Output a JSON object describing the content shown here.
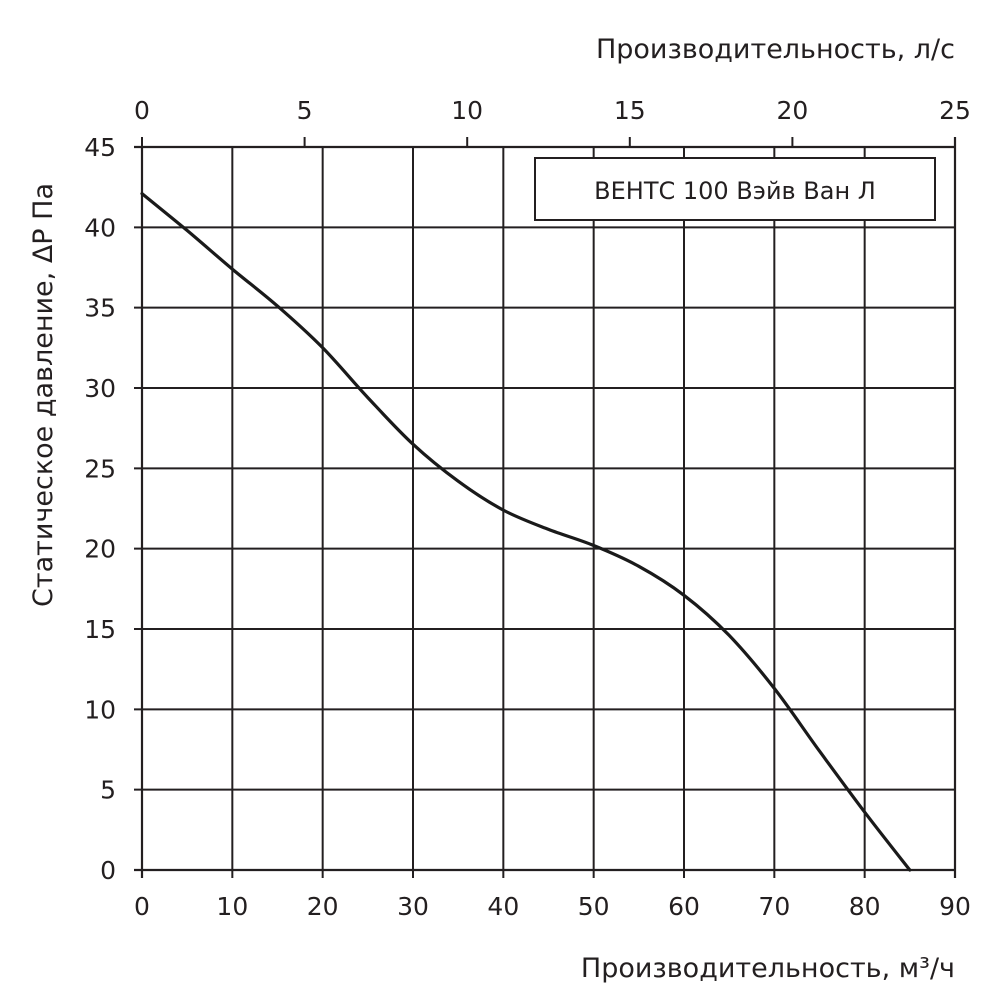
{
  "chart_data": {
    "type": "line",
    "title": "",
    "legend": [
      "ВЕНТС 100 Вэйв Ван Л"
    ],
    "legend_position": "top-right",
    "grid": true,
    "xlabel": "Производительность, м³/ч",
    "xlabel_top": "Производительность, л/с",
    "ylabel": "Статическое давление, ΔP Па",
    "xlim": [
      0,
      90
    ],
    "xlim_top": [
      0,
      25
    ],
    "ylim": [
      0,
      45
    ],
    "x_ticks": [
      0,
      10,
      20,
      30,
      40,
      50,
      60,
      70,
      80,
      90
    ],
    "x_ticks_top": [
      0,
      5,
      10,
      15,
      20,
      25
    ],
    "y_ticks": [
      0,
      5,
      10,
      15,
      20,
      25,
      30,
      35,
      40,
      45
    ],
    "series": [
      {
        "name": "ВЕНТС 100 Вэйв Ван Л",
        "x": [
          0,
          5,
          10,
          15,
          20,
          25,
          30,
          35,
          40,
          45,
          50,
          55,
          60,
          65,
          70,
          75,
          80,
          85
        ],
        "y": [
          42.1,
          39.8,
          37.4,
          35.1,
          32.5,
          29.4,
          26.5,
          24.2,
          22.4,
          21.2,
          20.2,
          18.9,
          17.1,
          14.6,
          11.3,
          7.4,
          3.6,
          0
        ]
      }
    ]
  },
  "colors": {
    "line": "#1a1a1a",
    "grid": "#231f20",
    "text": "#231f20",
    "background": "#ffffff"
  }
}
